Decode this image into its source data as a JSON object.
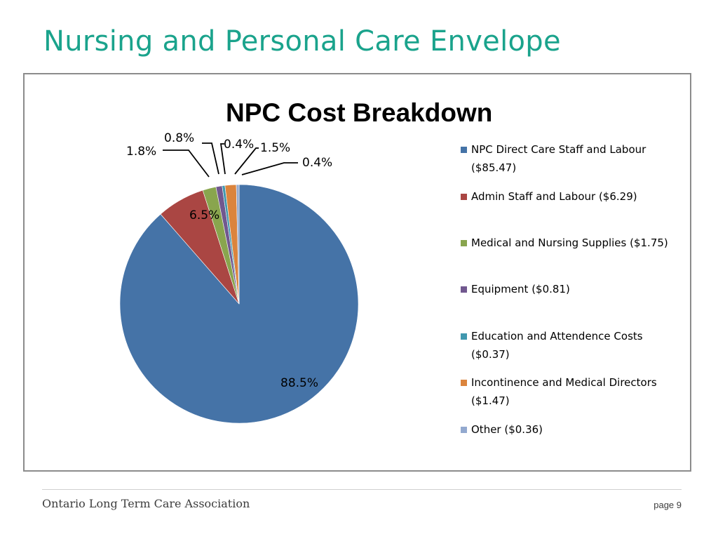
{
  "slide": {
    "title": "Nursing and Personal Care Envelope",
    "footer_org": "Ontario Long Term Care Association",
    "footer_page": "page 9"
  },
  "chart_data": {
    "type": "pie",
    "title": "NPC Cost Breakdown",
    "legend_position": "right",
    "slices": [
      {
        "legend": [
          "NPC Direct Care Staff and Labour",
          "($85.47)"
        ],
        "value": 85.47,
        "percent": 88.5,
        "label": "88.5%",
        "color": "#4573a7"
      },
      {
        "legend": [
          "Admin Staff and Labour ($6.29)"
        ],
        "value": 6.29,
        "percent": 6.5,
        "label": "6.5%",
        "color": "#aa4643"
      },
      {
        "legend": [
          "Medical and Nursing Supplies ($1.75)"
        ],
        "value": 1.75,
        "percent": 1.8,
        "label": "1.8%",
        "color": "#89a54e"
      },
      {
        "legend": [
          "Equipment ($0.81)"
        ],
        "value": 0.81,
        "percent": 0.8,
        "label": "0.8%",
        "color": "#71588f"
      },
      {
        "legend": [
          "Education and Attendence Costs",
          "($0.37)"
        ],
        "value": 0.37,
        "percent": 0.4,
        "label": "0.4%",
        "color": "#4198af"
      },
      {
        "legend": [
          "Incontinence and Medical Directors",
          "($1.47)"
        ],
        "value": 1.47,
        "percent": 1.5,
        "label": "1.5%",
        "color": "#db843d"
      },
      {
        "legend": [
          "Other ($0.36)"
        ],
        "value": 0.36,
        "percent": 0.4,
        "label": "0.4%",
        "color": "#93a9cf"
      }
    ]
  }
}
